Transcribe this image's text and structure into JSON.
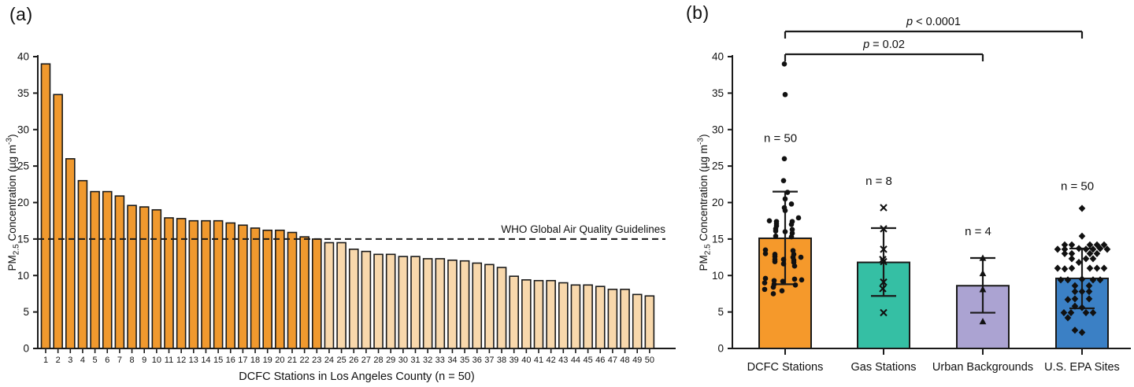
{
  "figure": {
    "panel_a_label": "(a)",
    "panel_b_label": "(b)",
    "background": "#ffffff",
    "ink_color": "#1a1a1a"
  },
  "chart_data": [
    {
      "panel": "a",
      "type": "bar",
      "title": "",
      "xlabel": "DCFC Stations in Los Angeles County (n = 50)",
      "ylabel": "PM2.5 Concentration (µg m-3)",
      "ylabel_parts": {
        "pre": "PM",
        "sub": "2.5",
        "mid": " Concentration (µg m",
        "sup": "-3",
        "post": ")"
      },
      "ylim": [
        0,
        40
      ],
      "yticks": [
        0,
        5,
        10,
        15,
        20,
        25,
        30,
        35,
        40
      ],
      "grid": false,
      "categories": [
        "1",
        "2",
        "3",
        "4",
        "5",
        "6",
        "7",
        "8",
        "9",
        "10",
        "11",
        "12",
        "13",
        "14",
        "15",
        "16",
        "17",
        "18",
        "19",
        "20",
        "21",
        "22",
        "23",
        "24",
        "25",
        "26",
        "27",
        "28",
        "29",
        "30",
        "31",
        "32",
        "33",
        "34",
        "35",
        "36",
        "37",
        "38",
        "39",
        "40",
        "41",
        "42",
        "43",
        "44",
        "45",
        "46",
        "47",
        "48",
        "49",
        "50"
      ],
      "values": [
        39.0,
        34.8,
        26.0,
        23.0,
        21.5,
        21.5,
        20.9,
        19.6,
        19.4,
        19.0,
        17.9,
        17.8,
        17.5,
        17.5,
        17.5,
        17.2,
        16.9,
        16.5,
        16.2,
        16.2,
        15.9,
        15.3,
        15.0,
        14.5,
        14.5,
        13.6,
        13.3,
        12.9,
        12.9,
        12.6,
        12.6,
        12.3,
        12.3,
        12.1,
        12.0,
        11.7,
        11.5,
        11.1,
        9.9,
        9.4,
        9.3,
        9.3,
        9.0,
        8.7,
        8.7,
        8.5,
        8.1,
        8.1,
        7.4,
        7.2
      ],
      "threshold": {
        "value": 15,
        "label": "WHO Global Air Quality Guidelines"
      },
      "bar_color_above_threshold": "#F0992E",
      "bar_color_below_threshold": "#F8D8AC"
    },
    {
      "panel": "b",
      "type": "bar+scatter",
      "title": "",
      "xlabel": "",
      "ylabel": "PM2.5 Concentration (µg m-3)",
      "ylabel_parts": {
        "pre": "PM",
        "sub": "2.5",
        "mid": " Concentration (µg m",
        "sup": "-3",
        "post": ")"
      },
      "ylim": [
        0,
        40
      ],
      "yticks": [
        0,
        5,
        10,
        15,
        20,
        25,
        30,
        35,
        40
      ],
      "grid": false,
      "categories": [
        "DCFC Stations",
        "Gas Stations",
        "Urban Backgrounds",
        "U.S. EPA Sites"
      ],
      "series": [
        {
          "name": "DCFC Stations",
          "mean": 15.1,
          "err_low": 8.8,
          "err_high": 21.5,
          "n_label": "n = 50",
          "n_label_y": 28.3,
          "color": "#F5992B",
          "marker": "circle",
          "points": [
            [
              -1,
              39.0
            ],
            [
              0,
              34.8
            ],
            [
              -1,
              26.0
            ],
            [
              -2,
              23.0
            ],
            [
              3,
              21.4
            ],
            [
              0,
              20.5
            ],
            [
              8,
              19.8
            ],
            [
              -1,
              19.3
            ],
            [
              0,
              18.9
            ],
            [
              17,
              17.9
            ],
            [
              -20,
              17.5
            ],
            [
              -11,
              17.4
            ],
            [
              9,
              17.4
            ],
            [
              -11,
              17.1
            ],
            [
              8,
              17.0
            ],
            [
              -11,
              16.8
            ],
            [
              -12,
              16.4
            ],
            [
              9,
              16.3
            ],
            [
              -12,
              16.1
            ],
            [
              0,
              16.0
            ],
            [
              9,
              15.8
            ],
            [
              -12,
              15.4
            ],
            [
              8,
              15.3
            ],
            [
              -25,
              13.5
            ],
            [
              10,
              13.4
            ],
            [
              -25,
              13.0
            ],
            [
              -13,
              12.9
            ],
            [
              11,
              12.9
            ],
            [
              -13,
              12.6
            ],
            [
              10,
              12.5
            ],
            [
              20,
              12.5
            ],
            [
              -13,
              12.2
            ],
            [
              -2,
              12.2
            ],
            [
              11,
              12.1
            ],
            [
              -13,
              11.9
            ],
            [
              11,
              11.8
            ],
            [
              -2,
              11.6
            ],
            [
              12,
              11.3
            ],
            [
              -25,
              9.6
            ],
            [
              12,
              9.5
            ],
            [
              -14,
              9.3
            ],
            [
              -3,
              9.2
            ],
            [
              21,
              9.4
            ],
            [
              -26,
              9.0
            ],
            [
              -14,
              8.8
            ],
            [
              13,
              8.7
            ],
            [
              -15,
              8.4
            ],
            [
              -26,
              8.1
            ],
            [
              -4,
              7.9
            ],
            [
              -15,
              7.5
            ]
          ]
        },
        {
          "name": "Gas Stations",
          "mean": 11.8,
          "err_low": 7.2,
          "err_high": 16.5,
          "n_label": "n = 8",
          "n_label_y": 22.4,
          "color": "#35BFA4",
          "marker": "x",
          "points": [
            [
              0,
              19.3
            ],
            [
              0,
              16.4
            ],
            [
              0,
              13.6
            ],
            [
              -1,
              12.2
            ],
            [
              0,
              11.9
            ],
            [
              0,
              9.1
            ],
            [
              -1,
              8.2
            ],
            [
              0,
              4.9
            ]
          ]
        },
        {
          "name": "Urban Backgrounds",
          "mean": 8.6,
          "err_low": 4.9,
          "err_high": 12.4,
          "n_label": "n = 4",
          "n_label_y": 15.5,
          "color": "#ABA3D2",
          "marker": "triangle",
          "points": [
            [
              0,
              12.4
            ],
            [
              0,
              10.3
            ],
            [
              0,
              8.1
            ],
            [
              0,
              3.7
            ]
          ]
        },
        {
          "name": "U.S. EPA Sites",
          "mean": 9.6,
          "err_low": 5.5,
          "err_high": 13.7,
          "n_label": "n = 50",
          "n_label_y": 21.7,
          "color": "#3B80C5",
          "marker": "diamond",
          "points": [
            [
              0,
              19.2
            ],
            [
              0,
              15.4
            ],
            [
              -22,
              14.2
            ],
            [
              -13,
              14.2
            ],
            [
              10,
              14.2
            ],
            [
              19,
              14.2
            ],
            [
              28,
              14.2
            ],
            [
              -31,
              13.6
            ],
            [
              -22,
              13.6
            ],
            [
              -4,
              13.7
            ],
            [
              5,
              13.6
            ],
            [
              14,
              13.6
            ],
            [
              23,
              13.7
            ],
            [
              32,
              13.6
            ],
            [
              -22,
              13.0
            ],
            [
              -13,
              13.0
            ],
            [
              10,
              13.0
            ],
            [
              19,
              13.0
            ],
            [
              -13,
              12.3
            ],
            [
              5,
              12.3
            ],
            [
              14,
              12.3
            ],
            [
              -4,
              11.8
            ],
            [
              -31,
              11.0
            ],
            [
              -22,
              10.9
            ],
            [
              -13,
              11.0
            ],
            [
              10,
              11.0
            ],
            [
              19,
              11.0
            ],
            [
              28,
              11.0
            ],
            [
              -27,
              9.4
            ],
            [
              -18,
              9.4
            ],
            [
              0,
              9.5
            ],
            [
              14,
              9.4
            ],
            [
              23,
              9.4
            ],
            [
              -9,
              8.6
            ],
            [
              9,
              8.6
            ],
            [
              -9,
              7.8
            ],
            [
              0,
              7.8
            ],
            [
              9,
              7.8
            ],
            [
              -18,
              6.7
            ],
            [
              -9,
              6.8
            ],
            [
              9,
              6.8
            ],
            [
              -9,
              5.8
            ],
            [
              0,
              5.6
            ],
            [
              -23,
              4.9
            ],
            [
              -14,
              4.9
            ],
            [
              5,
              4.9
            ],
            [
              14,
              4.9
            ],
            [
              -18,
              4.2
            ],
            [
              -9,
              2.5
            ],
            [
              0,
              2.2
            ]
          ]
        }
      ],
      "significance": [
        {
          "label": "p < 0.0001",
          "from_index": 0,
          "to_index": 3,
          "level": 1
        },
        {
          "label": "p = 0.02",
          "from_index": 0,
          "to_index": 2,
          "level": 2
        }
      ]
    }
  ]
}
